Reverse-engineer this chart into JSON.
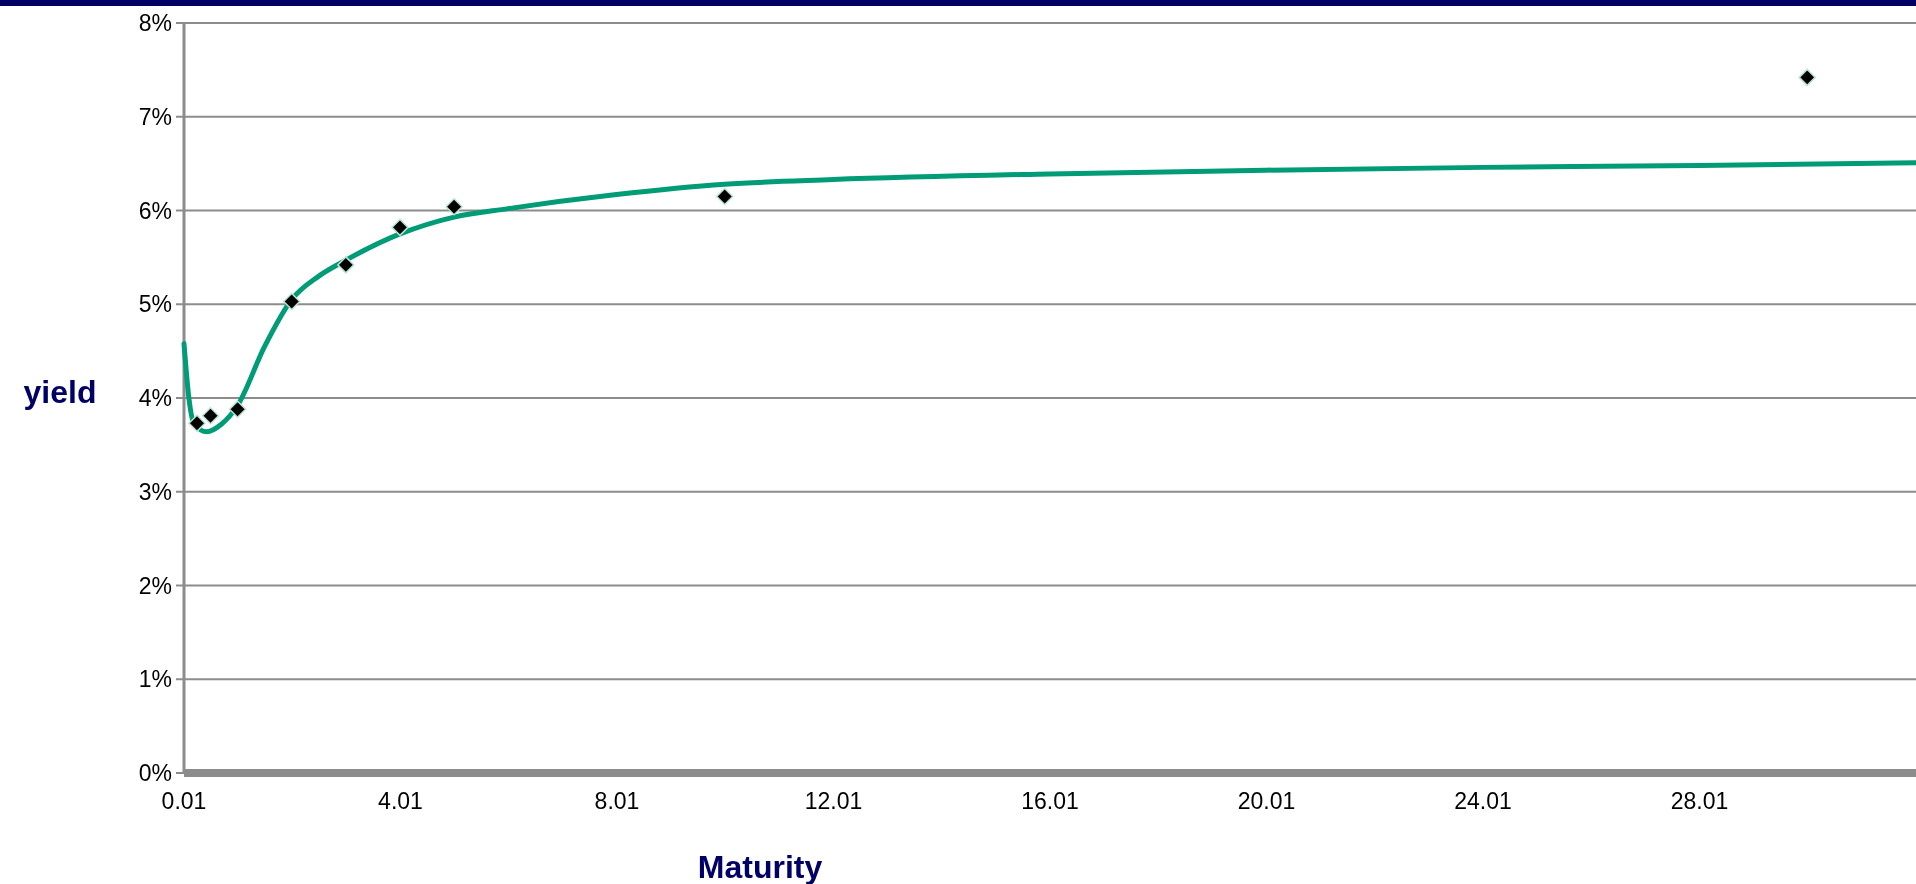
{
  "chart_data": {
    "type": "scatter",
    "xlabel": "Maturity",
    "ylabel": "yield",
    "xlim": [
      0.01,
      32.01
    ],
    "ylim": [
      0,
      8
    ],
    "xticks": [
      0.01,
      4.01,
      8.01,
      12.01,
      16.01,
      20.01,
      24.01,
      28.01
    ],
    "yticks": [
      {
        "value": 0,
        "label": "0%"
      },
      {
        "value": 1,
        "label": "1%"
      },
      {
        "value": 2,
        "label": "2%"
      },
      {
        "value": 3,
        "label": "3%"
      },
      {
        "value": 4,
        "label": "4%"
      },
      {
        "value": 5,
        "label": "5%"
      },
      {
        "value": 6,
        "label": "6%"
      },
      {
        "value": 7,
        "label": "7%"
      },
      {
        "value": 8,
        "label": "8%"
      }
    ],
    "grid": "y",
    "marker": "diamond",
    "series": [
      {
        "type": "line",
        "color": "#009b77",
        "marker": "none",
        "line_style": "solid",
        "x": [
          0.01,
          0.1,
          0.2,
          0.43,
          0.7,
          1,
          1.5,
          2,
          2.5,
          3,
          4,
          5,
          6,
          8,
          10,
          12,
          16,
          20,
          24,
          28,
          32.01
        ],
        "values": [
          4.58,
          4.0,
          3.72,
          3.64,
          3.72,
          3.92,
          4.55,
          5.05,
          5.3,
          5.47,
          5.75,
          5.93,
          6.02,
          6.17,
          6.28,
          6.33,
          6.39,
          6.43,
          6.46,
          6.48,
          6.51
        ]
      },
      {
        "color": "#000000",
        "x": [
          0.25,
          0.5,
          1,
          2,
          3,
          4,
          5,
          10,
          30
        ],
        "values": [
          3.73,
          3.81,
          3.88,
          5.03,
          5.42,
          5.82,
          6.04,
          6.15,
          7.42
        ]
      }
    ]
  }
}
